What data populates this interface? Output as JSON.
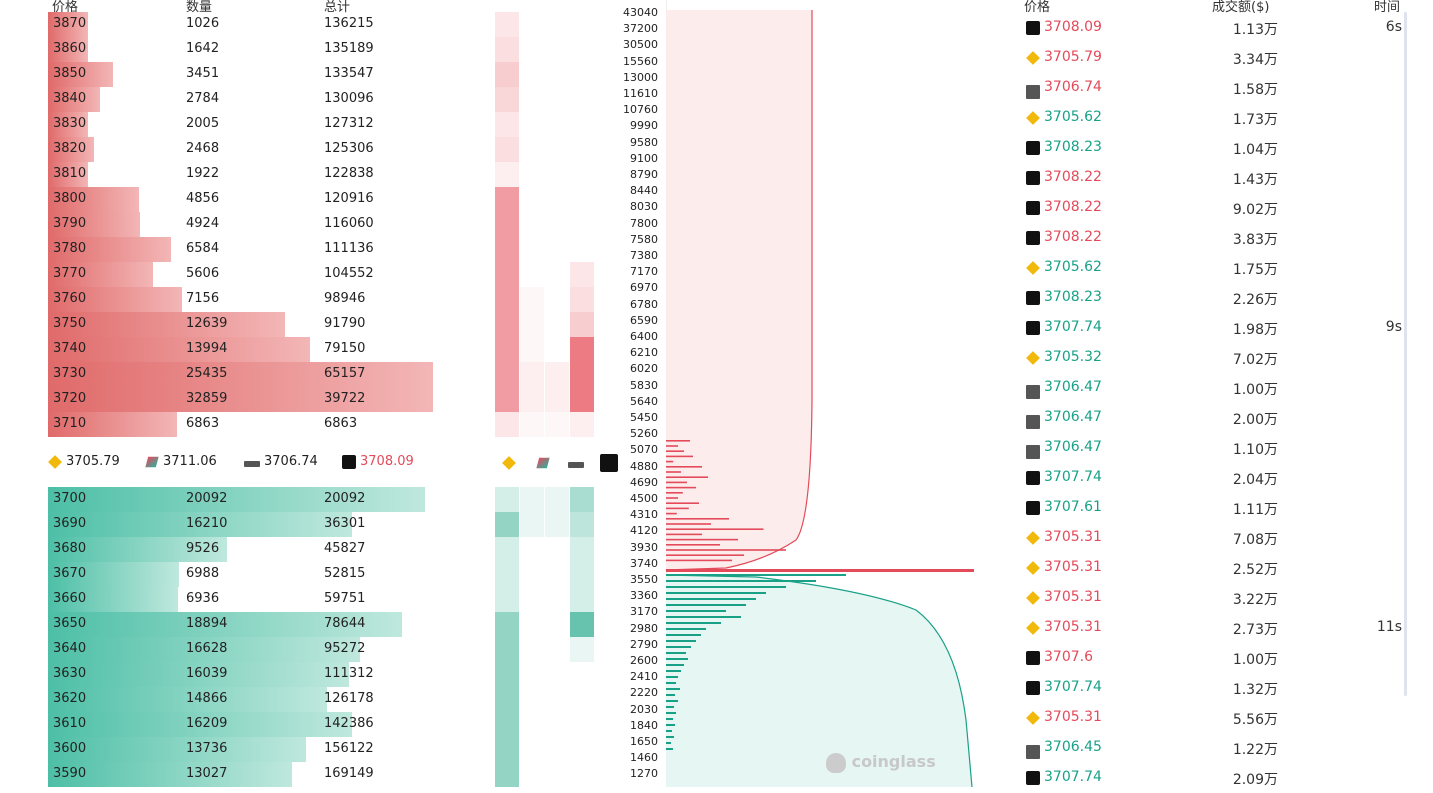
{
  "orderbook": {
    "headers": {
      "price": "价格",
      "qty": "数量",
      "total": "总计"
    },
    "asks": [
      {
        "price": "3870",
        "qty": "1026",
        "total": "136215"
      },
      {
        "price": "3860",
        "qty": "1642",
        "total": "135189"
      },
      {
        "price": "3850",
        "qty": "3451",
        "total": "133547"
      },
      {
        "price": "3840",
        "qty": "2784",
        "total": "130096"
      },
      {
        "price": "3830",
        "qty": "2005",
        "total": "127312"
      },
      {
        "price": "3820",
        "qty": "2468",
        "total": "125306"
      },
      {
        "price": "3810",
        "qty": "1922",
        "total": "122838"
      },
      {
        "price": "3800",
        "qty": "4856",
        "total": "120916"
      },
      {
        "price": "3790",
        "qty": "4924",
        "total": "116060"
      },
      {
        "price": "3780",
        "qty": "6584",
        "total": "111136"
      },
      {
        "price": "3770",
        "qty": "5606",
        "total": "104552"
      },
      {
        "price": "3760",
        "qty": "7156",
        "total": "98946"
      },
      {
        "price": "3750",
        "qty": "12639",
        "total": "91790"
      },
      {
        "price": "3740",
        "qty": "13994",
        "total": "79150"
      },
      {
        "price": "3730",
        "qty": "25435",
        "total": "65157"
      },
      {
        "price": "3720",
        "qty": "32859",
        "total": "39722"
      },
      {
        "price": "3710",
        "qty": "6863",
        "total": "6863"
      }
    ],
    "bids": [
      {
        "price": "3700",
        "qty": "20092",
        "total": "20092"
      },
      {
        "price": "3690",
        "qty": "16210",
        "total": "36301"
      },
      {
        "price": "3680",
        "qty": "9526",
        "total": "45827"
      },
      {
        "price": "3670",
        "qty": "6988",
        "total": "52815"
      },
      {
        "price": "3660",
        "qty": "6936",
        "total": "59751"
      },
      {
        "price": "3650",
        "qty": "18894",
        "total": "78644"
      },
      {
        "price": "3640",
        "qty": "16628",
        "total": "95272"
      },
      {
        "price": "3630",
        "qty": "16039",
        "total": "111312"
      },
      {
        "price": "3620",
        "qty": "14866",
        "total": "126178"
      },
      {
        "price": "3610",
        "qty": "16209",
        "total": "142386"
      },
      {
        "price": "3600",
        "qty": "13736",
        "total": "156122"
      },
      {
        "price": "3590",
        "qty": "13027",
        "total": "169149"
      }
    ],
    "exchange_prices": [
      {
        "icon": "binance-icon",
        "price": "3705.79"
      },
      {
        "icon": "bitget-icon",
        "price": "3711.06"
      },
      {
        "icon": "bybit-icon",
        "price": "3706.74"
      },
      {
        "icon": "okx-icon",
        "price": "3708.09"
      }
    ]
  },
  "depth_chart": {
    "y_ticks": [
      "43040",
      "37200",
      "30500",
      "15560",
      "13000",
      "11610",
      "10760",
      "9990",
      "9580",
      "9100",
      "8790",
      "8440",
      "8030",
      "7800",
      "7580",
      "7380",
      "7170",
      "6970",
      "6780",
      "6590",
      "6400",
      "6210",
      "6020",
      "5830",
      "5640",
      "5450",
      "5260",
      "5070",
      "4880",
      "4690",
      "4500",
      "4310",
      "4120",
      "3930",
      "3740",
      "3550",
      "3360",
      "3170",
      "2980",
      "2790",
      "2600",
      "2410",
      "2220",
      "2030",
      "1840",
      "1650",
      "1460",
      "1270"
    ],
    "watermark": "coinglass",
    "ask_color": "#e34a5a",
    "bid_color": "#19a187"
  },
  "trades": {
    "headers": {
      "price": "价格",
      "amount": "成交额($)",
      "time": "时间"
    },
    "rows": [
      {
        "icon": "okx-icon",
        "price": "3708.09",
        "side": "dn",
        "amount": "1.13万",
        "time": "6s"
      },
      {
        "icon": "binance-icon",
        "price": "3705.79",
        "side": "dn",
        "amount": "3.34万",
        "time": ""
      },
      {
        "icon": "bybit-icon",
        "price": "3706.74",
        "side": "dn",
        "amount": "1.58万",
        "time": ""
      },
      {
        "icon": "binance-icon",
        "price": "3705.62",
        "side": "up",
        "amount": "1.73万",
        "time": ""
      },
      {
        "icon": "okx-icon",
        "price": "3708.23",
        "side": "up",
        "amount": "1.04万",
        "time": ""
      },
      {
        "icon": "okx-icon",
        "price": "3708.22",
        "side": "dn",
        "amount": "1.43万",
        "time": ""
      },
      {
        "icon": "okx-icon",
        "price": "3708.22",
        "side": "dn",
        "amount": "9.02万",
        "time": ""
      },
      {
        "icon": "okx-icon",
        "price": "3708.22",
        "side": "dn",
        "amount": "3.83万",
        "time": ""
      },
      {
        "icon": "binance-icon",
        "price": "3705.62",
        "side": "up",
        "amount": "1.75万",
        "time": ""
      },
      {
        "icon": "okx-icon",
        "price": "3708.23",
        "side": "up",
        "amount": "2.26万",
        "time": ""
      },
      {
        "icon": "okx-icon",
        "price": "3707.74",
        "side": "up",
        "amount": "1.98万",
        "time": "9s"
      },
      {
        "icon": "binance-icon",
        "price": "3705.32",
        "side": "up",
        "amount": "7.02万",
        "time": ""
      },
      {
        "icon": "bybit-icon",
        "price": "3706.47",
        "side": "up",
        "amount": "1.00万",
        "time": ""
      },
      {
        "icon": "bybit-icon",
        "price": "3706.47",
        "side": "up",
        "amount": "2.00万",
        "time": ""
      },
      {
        "icon": "bybit-icon",
        "price": "3706.47",
        "side": "up",
        "amount": "1.10万",
        "time": ""
      },
      {
        "icon": "okx-icon",
        "price": "3707.74",
        "side": "up",
        "amount": "2.04万",
        "time": ""
      },
      {
        "icon": "okx-icon",
        "price": "3707.61",
        "side": "up",
        "amount": "1.11万",
        "time": ""
      },
      {
        "icon": "binance-icon",
        "price": "3705.31",
        "side": "dn",
        "amount": "7.08万",
        "time": ""
      },
      {
        "icon": "binance-icon",
        "price": "3705.31",
        "side": "dn",
        "amount": "2.52万",
        "time": ""
      },
      {
        "icon": "binance-icon",
        "price": "3705.31",
        "side": "dn",
        "amount": "3.22万",
        "time": ""
      },
      {
        "icon": "binance-icon",
        "price": "3705.31",
        "side": "dn",
        "amount": "2.73万",
        "time": "11s"
      },
      {
        "icon": "okx-icon",
        "price": "3707.6",
        "side": "dn",
        "amount": "1.00万",
        "time": ""
      },
      {
        "icon": "okx-icon",
        "price": "3707.74",
        "side": "up",
        "amount": "1.32万",
        "time": ""
      },
      {
        "icon": "binance-icon",
        "price": "3705.31",
        "side": "dn",
        "amount": "5.56万",
        "time": ""
      },
      {
        "icon": "bybit-icon",
        "price": "3706.45",
        "side": "up",
        "amount": "1.22万",
        "time": ""
      },
      {
        "icon": "okx-icon",
        "price": "3707.74",
        "side": "up",
        "amount": "2.09万",
        "time": ""
      }
    ]
  }
}
